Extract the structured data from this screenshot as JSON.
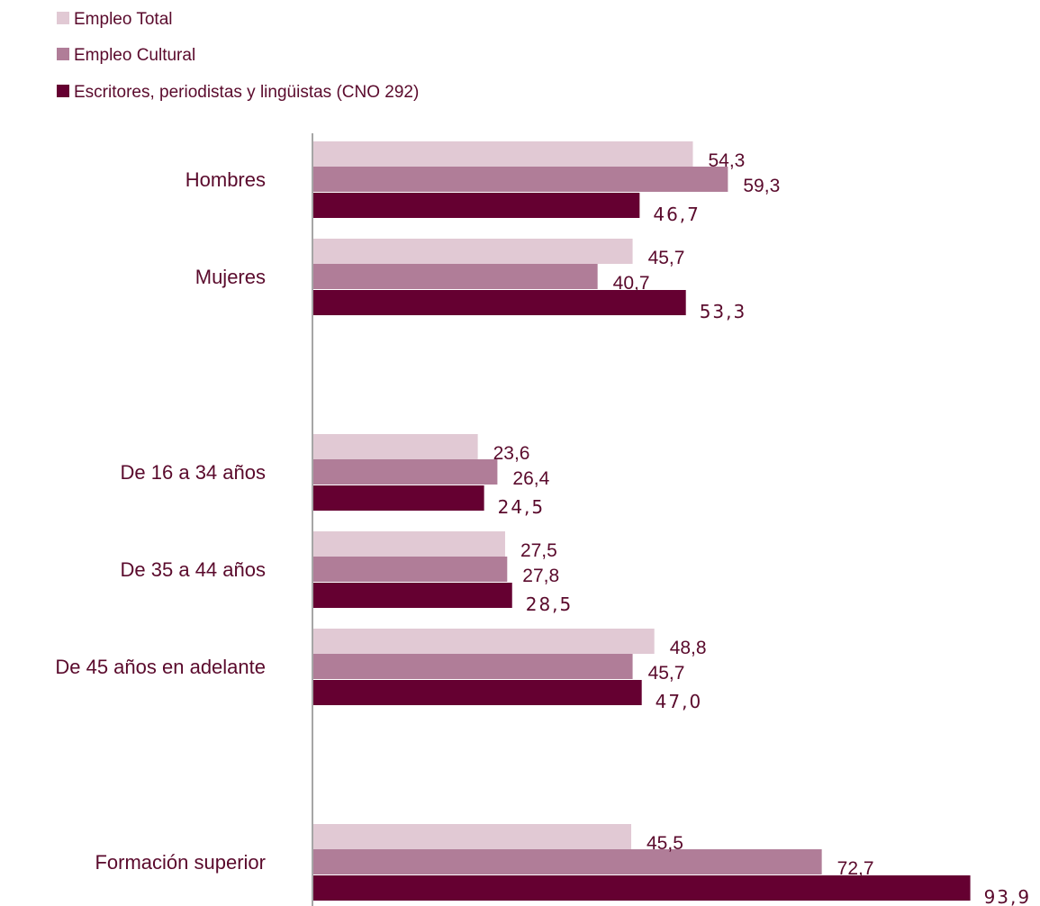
{
  "chart_data": {
    "type": "bar",
    "orientation": "horizontal",
    "categories": [
      "Hombres",
      "Mujeres",
      "De 16 a 34 años",
      "De 35 a 44 años",
      "De 45 años en adelante",
      "Formación superior"
    ],
    "series": [
      {
        "name": "Empleo Total",
        "color": "#e1c9d4",
        "values": [
          54.3,
          45.7,
          23.6,
          27.5,
          48.8,
          45.5
        ],
        "labels": [
          "54,3",
          "45,7",
          "23,6",
          "27,5",
          "48,8",
          "45,5"
        ]
      },
      {
        "name": "Empleo Cultural",
        "color": "#b07d98",
        "values": [
          59.3,
          40.7,
          26.4,
          27.8,
          45.7,
          72.7
        ],
        "labels": [
          "59,3",
          "40,7",
          "26,4",
          "27,8",
          "45,7",
          "72,7"
        ]
      },
      {
        "name": "Escritores, periodistas y lingüistas (CNO 292)",
        "color": "#650031",
        "values": [
          46.7,
          53.3,
          24.5,
          28.5,
          47.0,
          93.9
        ],
        "labels": [
          "46,7",
          "53,3",
          "24,5",
          "28,5",
          "47,0",
          "93,9"
        ]
      }
    ],
    "xlim": [
      0,
      100
    ],
    "legend_position": "top-left",
    "grid": false,
    "axis_color": "#a6a6a6",
    "label_color": "#5a0a2c"
  }
}
